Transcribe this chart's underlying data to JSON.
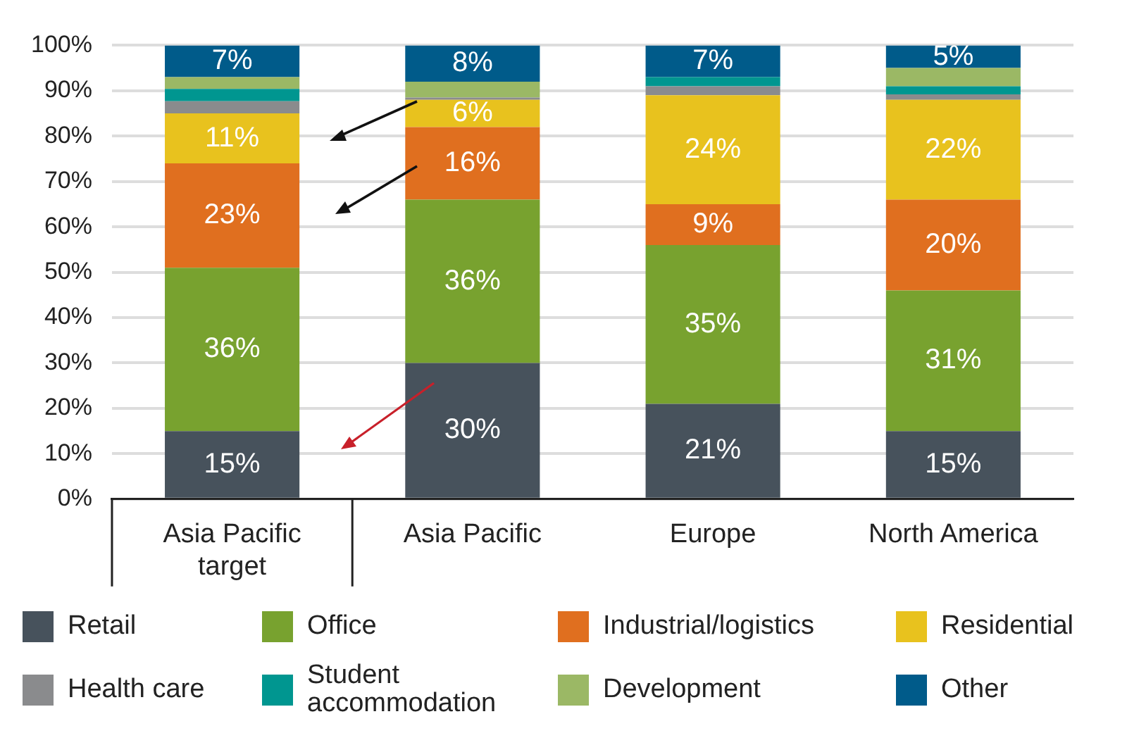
{
  "chart_data": {
    "type": "bar",
    "stacked": true,
    "categories": [
      "Asia Pacific target",
      "Asia Pacific",
      "Europe",
      "North America"
    ],
    "series": [
      {
        "name": "Retail",
        "color": "#47525c",
        "values": [
          15,
          30,
          21,
          15
        ],
        "value_labels": [
          "15%",
          "30%",
          "21%",
          "15%"
        ]
      },
      {
        "name": "Office",
        "color": "#78a22f",
        "values": [
          36,
          36,
          35,
          31
        ],
        "value_labels": [
          "36%",
          "36%",
          "35%",
          "31%"
        ]
      },
      {
        "name": "Industrial/logistics",
        "color": "#e06f1f",
        "values": [
          23,
          16,
          9,
          20
        ],
        "value_labels": [
          "23%",
          "16%",
          "9%",
          "20%"
        ]
      },
      {
        "name": "Residential",
        "color": "#e8c21e",
        "values": [
          11,
          6,
          24,
          22
        ],
        "value_labels": [
          "11%",
          "6%",
          "24%",
          "22%"
        ]
      },
      {
        "name": "Health care",
        "color": "#8a8b8d",
        "values": [
          2.7,
          0.5,
          2,
          1.2
        ],
        "value_labels": [
          null,
          null,
          null,
          null
        ]
      },
      {
        "name": "Student accommodation",
        "color": "#009690",
        "values": [
          2.7,
          0,
          2,
          1.8
        ],
        "value_labels": [
          null,
          null,
          null,
          null
        ]
      },
      {
        "name": "Development",
        "color": "#9bb865",
        "values": [
          2.6,
          3.5,
          0,
          4
        ],
        "value_labels": [
          null,
          null,
          null,
          null
        ]
      },
      {
        "name": "Other",
        "color": "#005b8a",
        "values": [
          7,
          8,
          7,
          5
        ],
        "value_labels": [
          "7%",
          "8%",
          "7%",
          "5%"
        ]
      }
    ],
    "ylim": [
      0,
      100
    ],
    "yticks": [
      {
        "value": 0,
        "label": "0%"
      },
      {
        "value": 10,
        "label": "10%"
      },
      {
        "value": 20,
        "label": "20%"
      },
      {
        "value": 30,
        "label": "30%"
      },
      {
        "value": 40,
        "label": "40%"
      },
      {
        "value": 50,
        "label": "50%"
      },
      {
        "value": 60,
        "label": "60%"
      },
      {
        "value": 70,
        "label": "70%"
      },
      {
        "value": 80,
        "label": "80%"
      },
      {
        "value": 90,
        "label": "90%"
      },
      {
        "value": 100,
        "label": "100%"
      }
    ],
    "grid": "y",
    "legend": "bottom"
  }
}
